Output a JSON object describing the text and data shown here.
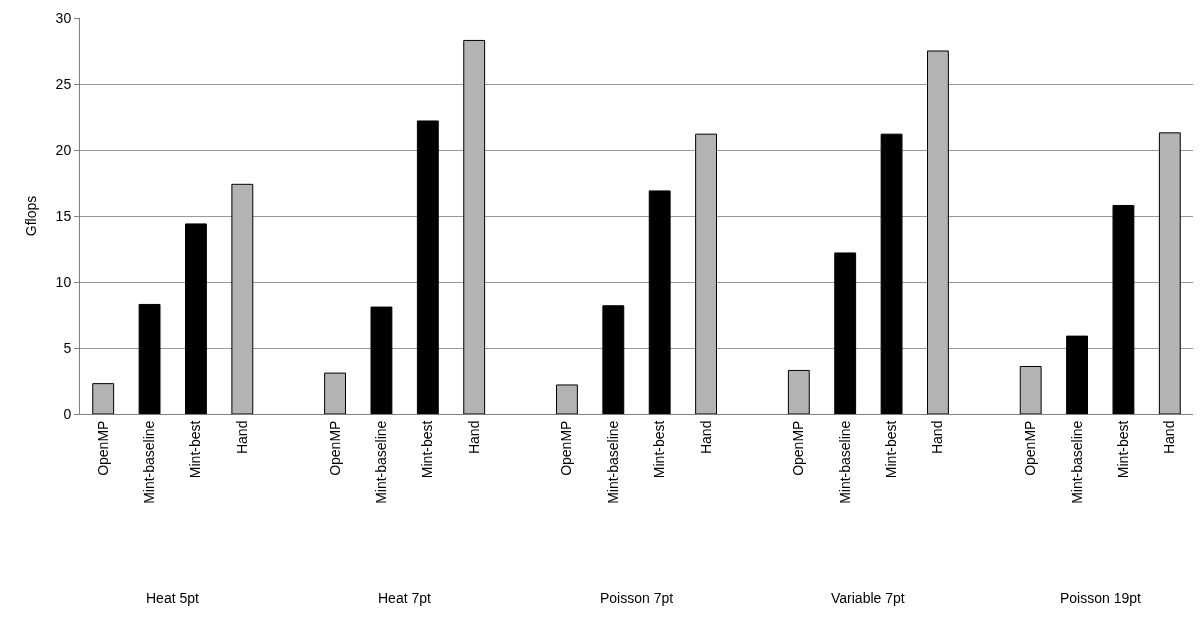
{
  "chart_data": {
    "type": "bar",
    "ylabel": "Gflops",
    "categories": [
      "OpenMP",
      "Mint-baseline",
      "Mint-best",
      "Hand",
      null,
      "OpenMP",
      "Mint-baseline",
      "Mint-best",
      "Hand",
      null,
      "OpenMP",
      "Mint-baseline",
      "Mint-best",
      "Hand",
      null,
      "OpenMP",
      "Mint-baseline",
      "Mint-best",
      "Hand",
      null,
      "OpenMP",
      "Mint-baseline",
      "Mint-best",
      "Hand"
    ],
    "values": [
      2.3,
      8.3,
      14.4,
      17.4,
      null,
      3.1,
      8.1,
      22.2,
      28.3,
      null,
      2.2,
      8.2,
      16.9,
      21.2,
      null,
      3.3,
      12.2,
      21.2,
      27.5,
      null,
      3.6,
      5.9,
      15.8,
      21.3
    ],
    "colors": [
      "#b3b3b3",
      "#000000",
      "#000000",
      "#b3b3b3",
      "#ffffff",
      "#b3b3b3",
      "#000000",
      "#000000",
      "#b3b3b3",
      "#ffffff",
      "#b3b3b3",
      "#000000",
      "#000000",
      "#b3b3b3",
      "#ffffff",
      "#b3b3b3",
      "#000000",
      "#000000",
      "#b3b3b3",
      "#ffffff",
      "#b3b3b3",
      "#000000",
      "#000000",
      "#b3b3b3"
    ],
    "annotations": [
      "Heat 5pt",
      "Heat 7pt",
      "Poisson 7pt",
      "Variable 7pt",
      "Poisson 19pt"
    ],
    "ylim": [
      0,
      30
    ],
    "yticks": [
      0,
      5,
      10,
      15,
      20,
      25,
      30
    ],
    "grid": "y",
    "legend": false
  }
}
